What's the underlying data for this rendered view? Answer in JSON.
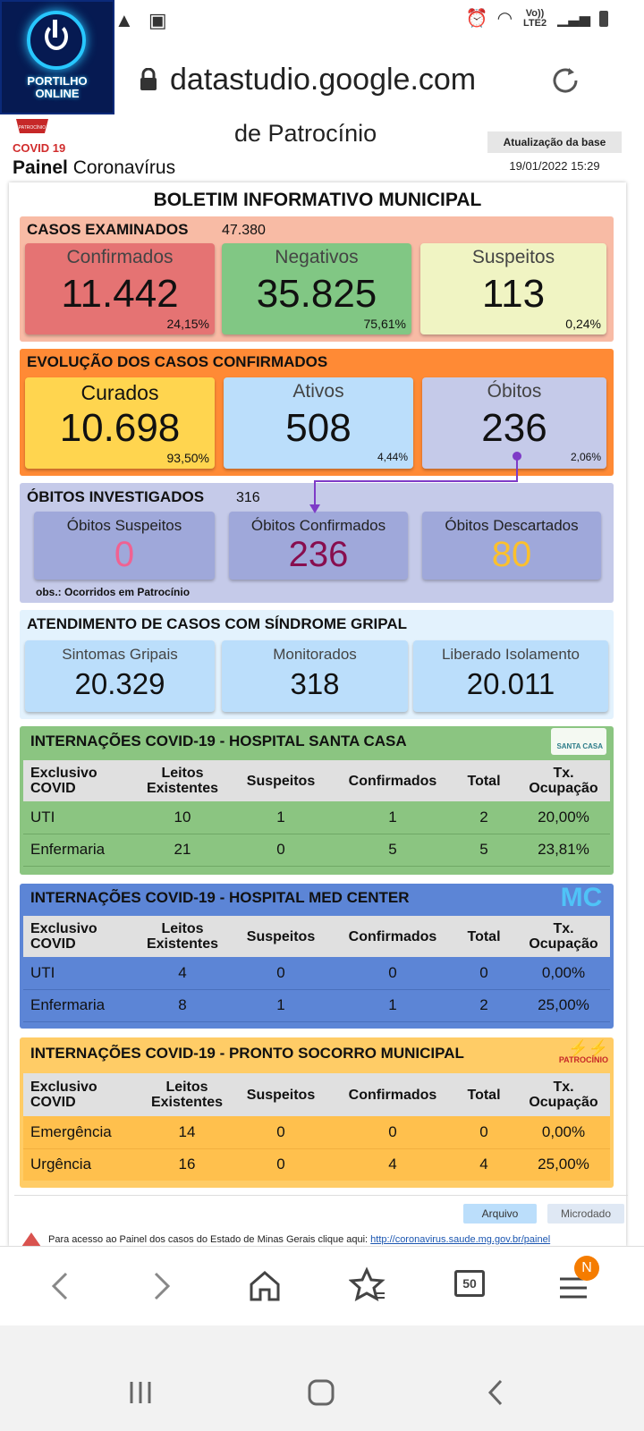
{
  "status_bar": {
    "network": "Vo)) LTE2"
  },
  "logo": {
    "line1": "PORTILHO",
    "line2": "ONLINE"
  },
  "browser": {
    "url": "datastudio.google.com"
  },
  "header": {
    "title": "de Patrocínio",
    "covid_label": "COVID 19",
    "emblem_text": "PATROCÍNIO",
    "painel_bold": "Painel",
    "painel_rest": " Coronavírus",
    "update_label": "Atualização da base",
    "update_date": "19/01/2022 15:29"
  },
  "bulletin_title": "BOLETIM INFORMATIVO MUNICIPAL",
  "casos": {
    "title": "CASOS EXAMINADOS",
    "total": "47.380",
    "cards": [
      {
        "label": "Confirmados",
        "value": "11.442",
        "pct": "24,15%",
        "bg": "#e57373"
      },
      {
        "label": "Negativos",
        "value": "35.825",
        "pct": "75,61%",
        "bg": "#81c784"
      },
      {
        "label": "Suspeitos",
        "value": "113",
        "pct": "0,24%",
        "bg": "#f0f4c3"
      }
    ]
  },
  "evolucao": {
    "title": "EVOLUÇÃO DOS CASOS CONFIRMADOS",
    "cards": [
      {
        "label": "Curados",
        "value": "10.698",
        "pct": "93,50%",
        "bg": "#ffd54f"
      },
      {
        "label": "Ativos",
        "value": "508",
        "pct": "4,44%",
        "bg": "#bbdefb"
      },
      {
        "label": "Óbitos",
        "value": "236",
        "pct": "2,06%",
        "bg": "#c5cae9"
      }
    ]
  },
  "obitos": {
    "title": "ÓBITOS INVESTIGADOS",
    "total": "316",
    "obs": "obs.: Ocorridos em Patrocínio",
    "cards": [
      {
        "label": "Óbitos Suspeitos",
        "value": "0",
        "color": "#f06292"
      },
      {
        "label": "Óbitos Confirmados",
        "value": "236",
        "color": "#880e4f"
      },
      {
        "label": "Óbitos Descartados",
        "value": "80",
        "color": "#fbc02d"
      }
    ]
  },
  "atendimento": {
    "title": "ATENDIMENTO DE CASOS COM SÍNDROME GRIPAL",
    "cards": [
      {
        "label": "Sintomas Gripais",
        "value": "20.329"
      },
      {
        "label": "Monitorados",
        "value": "318"
      },
      {
        "label": "Liberado Isolamento",
        "value": "20.011"
      }
    ]
  },
  "table_headers": {
    "col1a": "Exclusivo",
    "col1b": "COVID",
    "col2a": "Leitos",
    "col2b": "Existentes",
    "col3": "Suspeitos",
    "col4": "Confirmados",
    "col5": "Total",
    "col6a": "Tx.",
    "col6b": "Ocupação"
  },
  "santa_casa": {
    "title": "INTERNAÇÕES COVID-19 - HOSPITAL SANTA CASA",
    "logo_text": "SANTA CASA",
    "rows": [
      {
        "name": "UTI",
        "leitos": "10",
        "suspeitos": "1",
        "confirmados": "1",
        "total": "2",
        "tx": "20,00%"
      },
      {
        "name": "Enfermaria",
        "leitos": "21",
        "suspeitos": "0",
        "confirmados": "5",
        "total": "5",
        "tx": "23,81%"
      }
    ]
  },
  "med_center": {
    "title": "INTERNAÇÕES COVID-19 - HOSPITAL MED CENTER",
    "logo_text": "MC",
    "rows": [
      {
        "name": "UTI",
        "leitos": "4",
        "suspeitos": "0",
        "confirmados": "0",
        "total": "0",
        "tx": "0,00%"
      },
      {
        "name": "Enfermaria",
        "leitos": "8",
        "suspeitos": "1",
        "confirmados": "1",
        "total": "2",
        "tx": "25,00%"
      }
    ]
  },
  "pronto_socorro": {
    "title": "INTERNAÇÕES COVID-19 - PRONTO SOCORRO MUNICIPAL",
    "logo_text": "PATROCÍNIO",
    "rows": [
      {
        "name": "Emergência",
        "leitos": "14",
        "suspeitos": "0",
        "confirmados": "0",
        "total": "0",
        "tx": "0,00%"
      },
      {
        "name": "Urgência",
        "leitos": "16",
        "suspeitos": "0",
        "confirmados": "4",
        "total": "4",
        "tx": "25,00%"
      }
    ]
  },
  "footer": {
    "btn_arquivo": "Arquivo",
    "btn_microdado": "Microdado",
    "text": "Para acesso ao Painel dos casos do Estado de Minas Gerais clique aqui:",
    "link": "http://coronavirus.saude.mg.gov.br/painel"
  },
  "bottom_nav": {
    "tabs_count": "50",
    "badge": "N"
  }
}
